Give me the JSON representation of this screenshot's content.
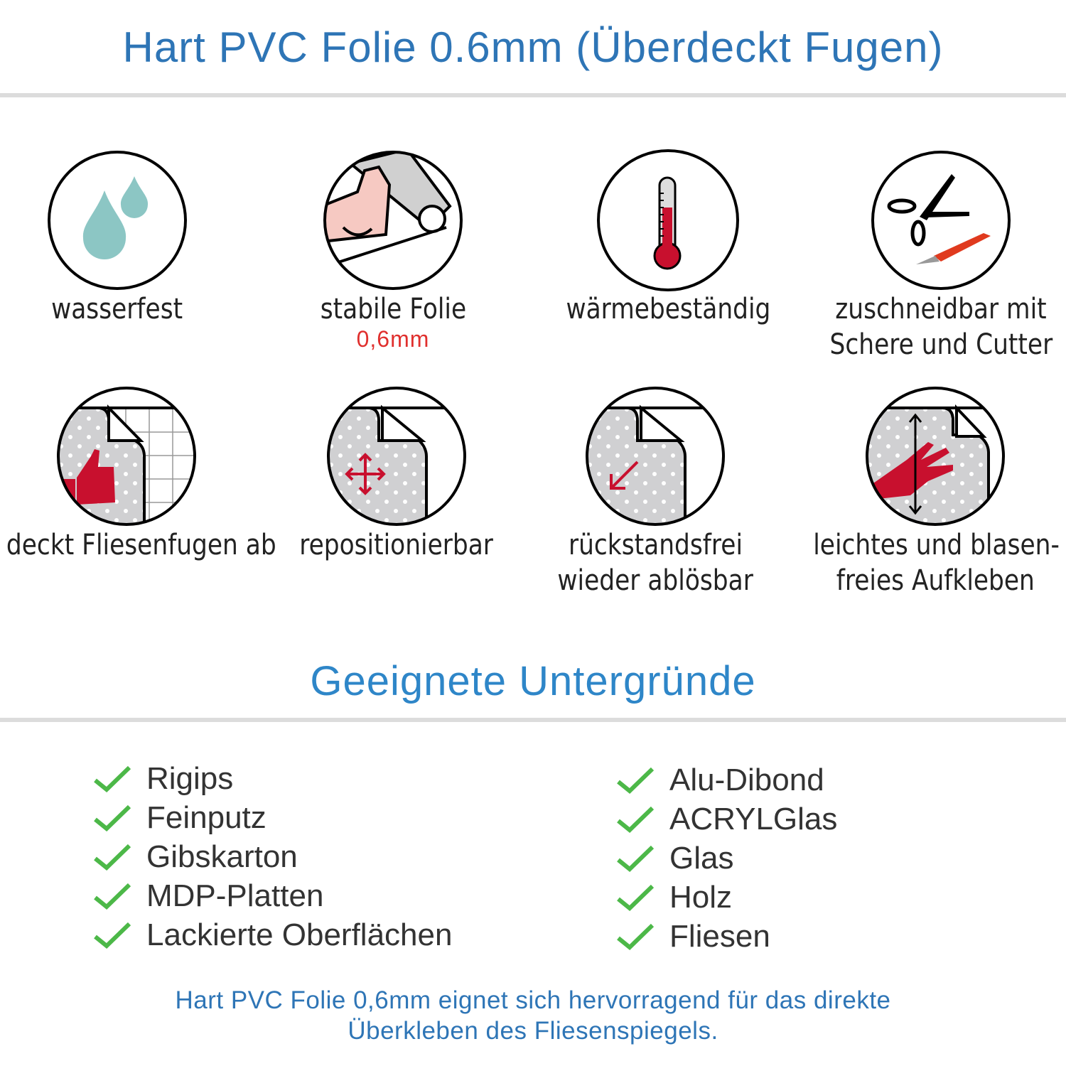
{
  "title": "Hart PVC Folie 0.6mm (Überdeckt Fugen)",
  "features": [
    {
      "icon": "water-drops-icon",
      "label": "wasserfest"
    },
    {
      "icon": "strong-arm-roll-icon",
      "label": "stabile Folie",
      "sub": "0,6mm"
    },
    {
      "icon": "thermometer-icon",
      "label": "wärmebeständig"
    },
    {
      "icon": "scissors-cutter-icon",
      "label": "zuschneidbar mit",
      "label2": "Schere und Cutter"
    },
    {
      "icon": "thumbs-up-tile-icon",
      "label": "deckt Fliesenfugen ab"
    },
    {
      "icon": "move-arrows-icon",
      "label": "repositionierbar"
    },
    {
      "icon": "peel-arrow-icon",
      "label": "rückstandsfrei",
      "label2": "wieder ablösbar"
    },
    {
      "icon": "hand-smooth-icon",
      "label": "leichtes und blasen-",
      "label2": "freies Aufkleben"
    }
  ],
  "subtitle": "Geeignete Untergründe",
  "surfaces_left": [
    "Rigips",
    "Feinputz",
    "Gibskarton",
    "MDP-Platten",
    "Lackierte Oberflächen"
  ],
  "surfaces_right": [
    "Alu-Dibond",
    "ACRYLGlas",
    "Glas",
    "Holz",
    "Fliesen"
  ],
  "footer": {
    "line1": "Hart PVC Folie 0,6mm eignet sich hervorragend für das direkte",
    "line2": "Überkleben des Fliesenspiegels."
  },
  "colors": {
    "heading": "#2e75b6",
    "check": "#4cb848",
    "accent_red": "#e0302e"
  }
}
